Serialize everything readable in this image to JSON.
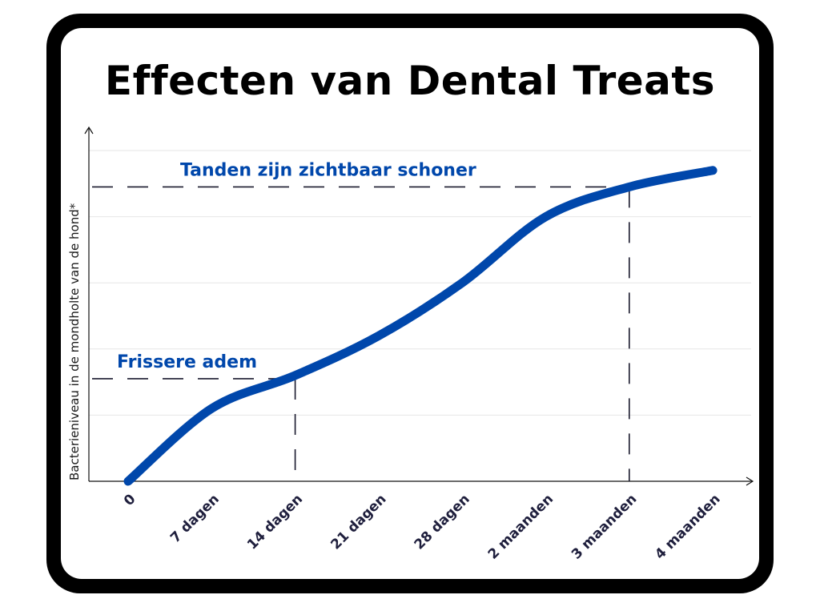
{
  "title": "Effecten van Dental Treats",
  "colors": {
    "line": "#0047AB",
    "annotation": "#0047AB",
    "guide": "#1a1a2e",
    "grid": "#e6e6e6",
    "tick_label": "#1f1f3d"
  },
  "chart_data": {
    "type": "line",
    "title": "Effecten van Dental Treats",
    "xlabel": "",
    "ylabel": "Bacterieniveau in de mondholte van de hond*",
    "categories": [
      "0",
      "7 dagen",
      "14 dagen",
      "21 dagen",
      "28 dagen",
      "2 maanden",
      "3 maanden",
      "4 maanden"
    ],
    "ylim": [
      0,
      5
    ],
    "grid": true,
    "series": [
      {
        "values": [
          0,
          1.1,
          1.6,
          2.2,
          3.0,
          4.0,
          4.45,
          4.7
        ]
      }
    ],
    "annotations": [
      {
        "text": "Frissere adem",
        "category": "14 dagen",
        "y": 1.55
      },
      {
        "text": "Tanden zijn zichtbaar schoner",
        "category": "3 maanden",
        "y": 4.45
      }
    ]
  }
}
